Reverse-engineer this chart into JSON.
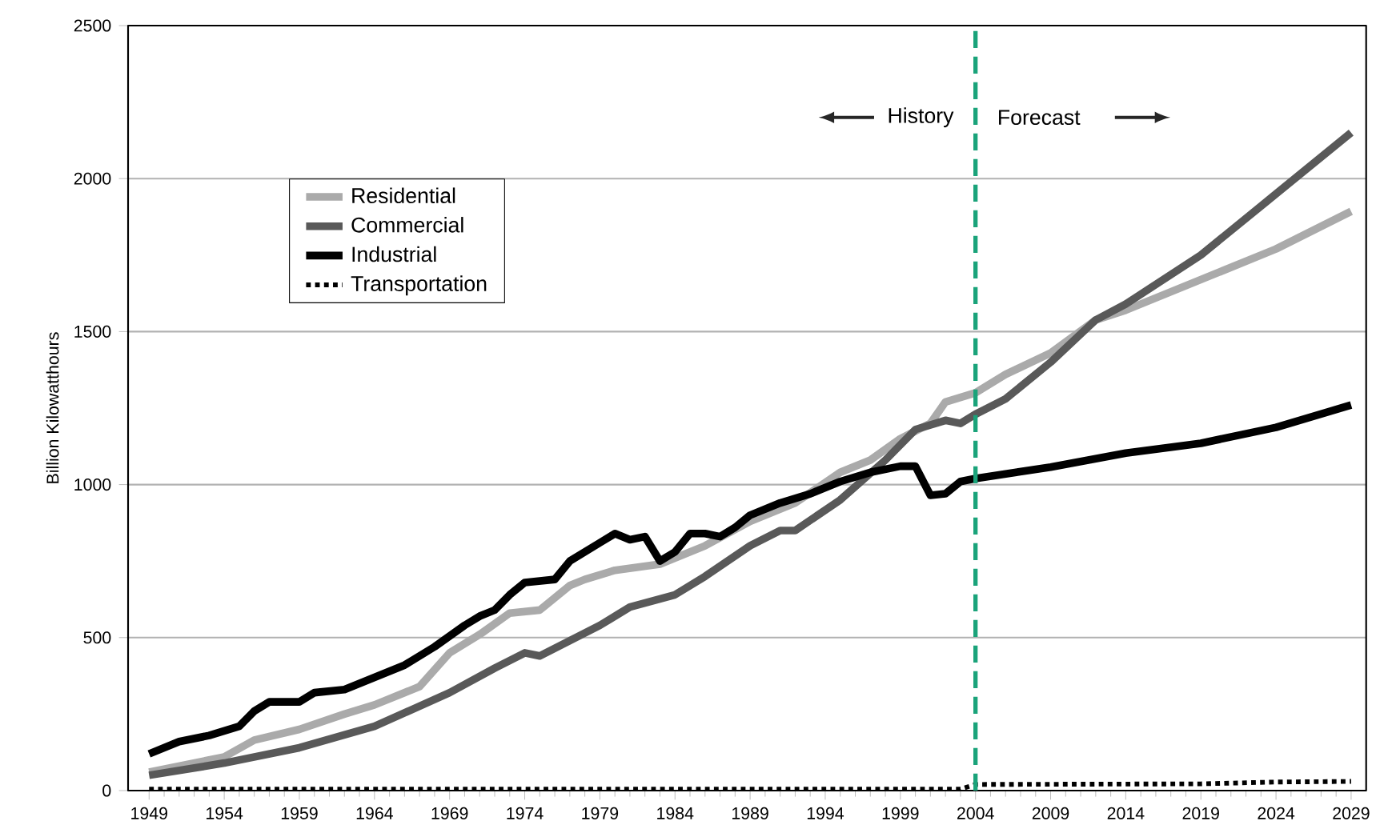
{
  "chart_data": {
    "type": "line",
    "ylabel": "Billion Kilowatthours",
    "xlim": [
      1947.6,
      2030
    ],
    "ylim": [
      0,
      2500
    ],
    "xticks": [
      1949,
      1954,
      1959,
      1964,
      1969,
      1974,
      1979,
      1984,
      1989,
      1994,
      1999,
      2004,
      2009,
      2014,
      2019,
      2024,
      2029
    ],
    "yticks": [
      0,
      500,
      1000,
      1500,
      2000,
      2500
    ],
    "grid": "y",
    "legend": "left",
    "marker": "none",
    "annotations": [
      "History",
      "Forecast"
    ],
    "ref_lines": [
      {
        "axis": "x",
        "value": 2004,
        "color": "#1aa37a",
        "line_style": "dashed"
      }
    ],
    "series": [
      {
        "name": "Residential",
        "color": "#aaaaaa",
        "line_style": "solid",
        "x": [
          1949,
          1954,
          1956,
          1959,
          1962,
          1964,
          1967,
          1969,
          1971,
          1973,
          1975,
          1977,
          1978,
          1980,
          1983,
          1986,
          1989,
          1992,
          1995,
          1997,
          1999,
          2001,
          2002,
          2004,
          2006,
          2009,
          2012,
          2014,
          2019,
          2024,
          2029
        ],
        "values": [
          60,
          110,
          165,
          200,
          250,
          280,
          340,
          450,
          510,
          580,
          590,
          670,
          690,
          720,
          740,
          800,
          880,
          940,
          1040,
          1080,
          1150,
          1200,
          1270,
          1300,
          1360,
          1430,
          1538,
          1570,
          1670,
          1770,
          1893
        ]
      },
      {
        "name": "Commercial",
        "color": "#595959",
        "line_style": "solid",
        "x": [
          1949,
          1954,
          1959,
          1964,
          1969,
          1972,
          1974,
          1975,
          1979,
          1981,
          1984,
          1986,
          1989,
          1991,
          1992,
          1995,
          1998,
          2000,
          2002,
          2003,
          2004,
          2006,
          2009,
          2012,
          2014,
          2019,
          2024,
          2029
        ],
        "values": [
          50,
          90,
          140,
          210,
          320,
          400,
          450,
          440,
          540,
          600,
          640,
          700,
          800,
          850,
          850,
          950,
          1080,
          1180,
          1210,
          1200,
          1230,
          1280,
          1400,
          1538,
          1590,
          1750,
          1950,
          2150
        ]
      },
      {
        "name": "Industrial",
        "color": "#000000",
        "line_style": "solid",
        "x": [
          1949,
          1951,
          1953,
          1955,
          1956,
          1957,
          1959,
          1960,
          1962,
          1964,
          1966,
          1968,
          1970,
          1971,
          1972,
          1973,
          1974,
          1976,
          1977,
          1979,
          1980,
          1981,
          1982,
          1983,
          1984,
          1985,
          1986,
          1987,
          1988,
          1989,
          1991,
          1993,
          1995,
          1997,
          1999,
          2000,
          2001,
          2002,
          2003,
          2004,
          2009,
          2014,
          2019,
          2024,
          2029
        ],
        "values": [
          120,
          160,
          180,
          210,
          260,
          290,
          290,
          320,
          330,
          370,
          410,
          470,
          540,
          570,
          590,
          640,
          680,
          690,
          750,
          810,
          840,
          820,
          830,
          750,
          780,
          840,
          840,
          830,
          860,
          900,
          940,
          970,
          1010,
          1040,
          1060,
          1060,
          965,
          970,
          1010,
          1020,
          1057,
          1103,
          1135,
          1187,
          1260
        ]
      },
      {
        "name": "Transportation",
        "color": "#000000",
        "line_style": "dotted",
        "x": [
          1949,
          2003,
          2004,
          2019,
          2024,
          2029
        ],
        "values": [
          5,
          5,
          20,
          22,
          28,
          30
        ]
      }
    ]
  }
}
